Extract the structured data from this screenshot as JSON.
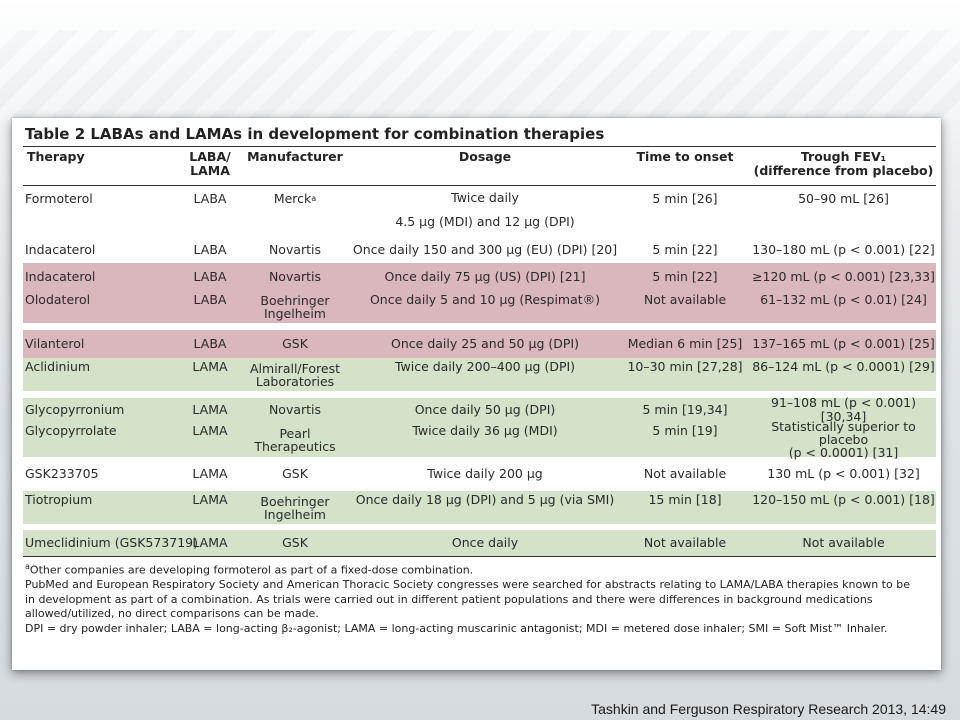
{
  "table": {
    "title": "Table 2 LABAs and LAMAs in development for combination therapies",
    "headers": [
      "Therapy",
      "LABA/\nLAMA",
      "Manufacturer",
      "Dosage",
      "Time to onset",
      "Trough FEV₁\n(difference from placebo)"
    ],
    "rows": [
      {
        "therapy": "Formoterol",
        "type": "LABA",
        "manufacturer": "Merck",
        "manufacturer_sup": "a",
        "dosage": "Twice daily\n\n4.5 μg (MDI) and 12 μg (DPI)",
        "onset": "5 min [26]",
        "fev1": "50–90 mL [26]",
        "highlight": "none"
      },
      {
        "therapy": "Indacaterol",
        "type": "LABA",
        "manufacturer": "Novartis",
        "dosage": "Once daily 150 and 300 μg (EU) (DPI) [20]",
        "onset": "5 min [22]",
        "fev1": "130–180 mL (p < 0.001) [22]",
        "highlight": "none"
      },
      {
        "therapy": "Indacaterol",
        "type": "LABA",
        "manufacturer": "Novartis",
        "dosage": "Once daily 75 μg (US) (DPI) [21]",
        "onset": "5 min [22]",
        "fev1": "≥120 mL (p < 0.001) [23,33]",
        "highlight": "pink"
      },
      {
        "therapy": "Olodaterol",
        "type": "LABA",
        "manufacturer": "Boehringer\nIngelheim",
        "dosage": "Once daily 5 and 10 μg (Respimat®)",
        "onset": "Not available",
        "fev1": "61–132 mL (p < 0.01) [24]",
        "highlight": "pink"
      },
      {
        "therapy": "Vilanterol",
        "type": "LABA",
        "manufacturer": "GSK",
        "dosage": "Once daily 25 and 50 μg (DPI)",
        "onset": "Median 6 min [25]",
        "fev1": "137–165 mL (p < 0.001) [25]",
        "highlight": "pink"
      },
      {
        "therapy": "Aclidinium",
        "type": "LAMA",
        "manufacturer": "Almirall/Forest\nLaboratories",
        "dosage": "Twice daily 200–400 μg (DPI)",
        "onset": "10–30 min [27,28]",
        "fev1": "86–124 mL (p < 0.0001) [29]",
        "highlight": "green"
      },
      {
        "therapy": "Glycopyrronium",
        "type": "LAMA",
        "manufacturer": "Novartis",
        "dosage": "Once daily 50 μg (DPI)",
        "onset": "5 min [19,34]",
        "fev1": "91–108 mL (p < 0.001) [30,34]",
        "highlight": "green"
      },
      {
        "therapy": "Glycopyrrolate",
        "type": "LAMA",
        "manufacturer": "Pearl\nTherapeutics",
        "dosage": "Twice daily 36 μg (MDI)",
        "onset": "5 min [19]",
        "fev1": "Statistically superior to placebo\n(p < 0.0001) [31]",
        "highlight": "green"
      },
      {
        "therapy": "GSK233705",
        "type": "LAMA",
        "manufacturer": "GSK",
        "dosage": "Twice daily 200 μg",
        "onset": "Not available",
        "fev1": "130 mL (p < 0.001) [32]",
        "highlight": "none"
      },
      {
        "therapy": "Tiotropium",
        "type": "LAMA",
        "manufacturer": "Boehringer\nIngelheim",
        "dosage": "Once daily 18 μg (DPI) and 5 μg (via SMI)",
        "onset": "15 min [18]",
        "fev1": "120–150 mL (p < 0.001) [18]",
        "highlight": "green"
      },
      {
        "therapy": "Umeclidinium (GSK573719)",
        "type": "LAMA",
        "manufacturer": "GSK",
        "dosage": "Once daily",
        "onset": "Not available",
        "fev1": "Not available",
        "highlight": "green"
      }
    ],
    "footnotes": {
      "a_marker": "a",
      "a_text": "Other companies are developing formoterol as part of a fixed-dose combination.",
      "methods_line1": "PubMed and European Respiratory Society and American Thoracic Society congresses were searched for abstracts relating to LAMA/LABA therapies known to be",
      "methods_line2": "in development as part of a combination. As trials were carried out in different patient populations and there were differences in background medications",
      "methods_line3": "allowed/utilized, no direct comparisons can be made.",
      "abbreviations": "DPI = dry powder inhaler; LABA = long-acting β₂-agonist; LAMA = long-acting muscarinic antagonist; MDI = metered dose inhaler; SMI = Soft Mist™ Inhaler."
    }
  },
  "citation": "Tashkin and Ferguson Respiratory Research 2013, 14:49",
  "colors": {
    "pink_highlight": "#d9b7bd",
    "green_highlight": "#d3e2c9"
  }
}
